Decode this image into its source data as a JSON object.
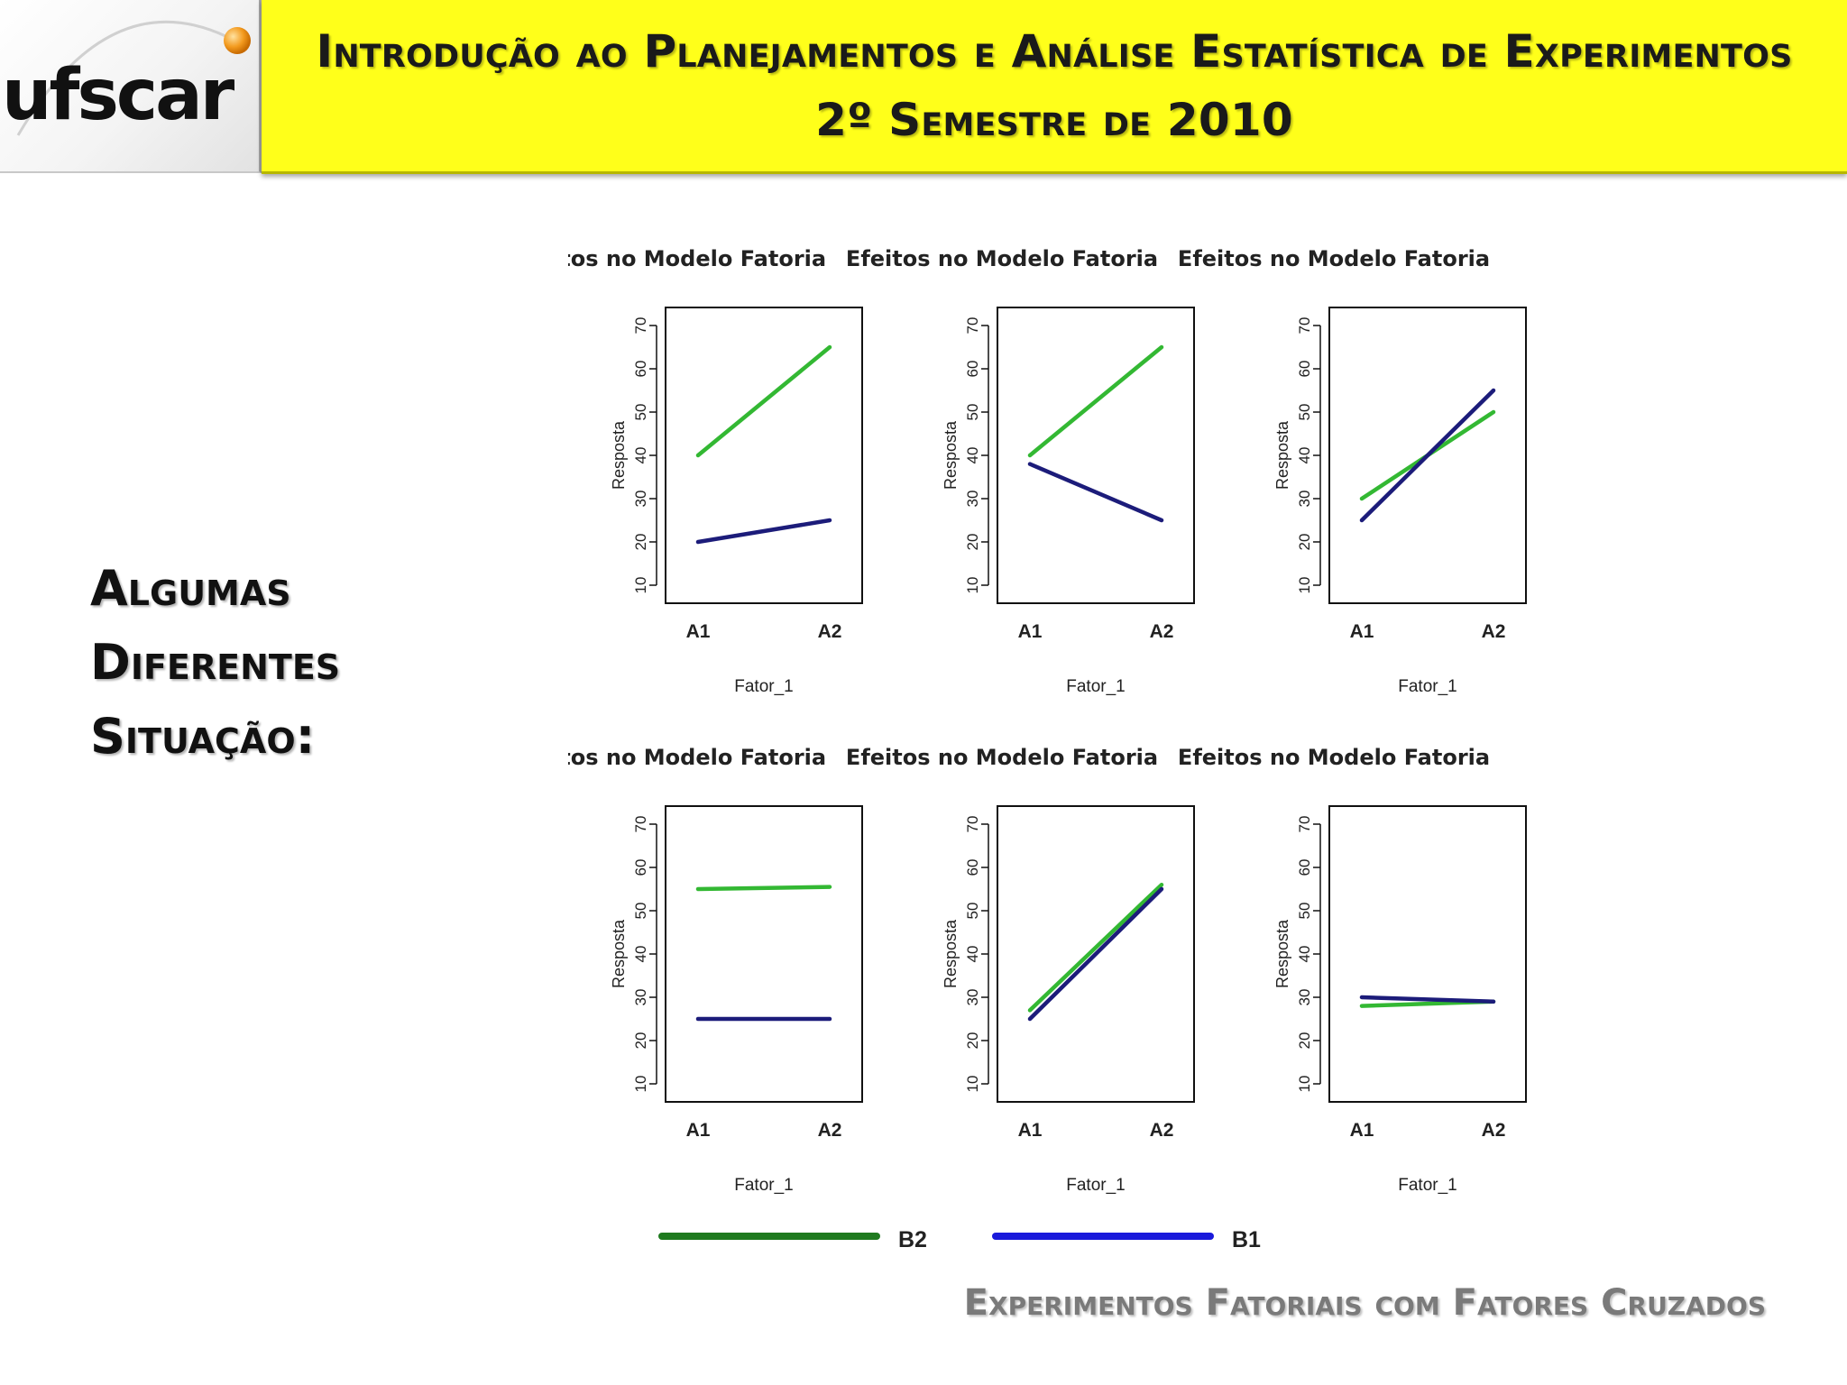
{
  "header": {
    "logo_text": "ufscar",
    "title_line1": "Introdução ao Planejamentos e Análise Estatística de Experimentos",
    "title_line2": "2º Semestre de 2010"
  },
  "side_heading": {
    "line1": "Algumas",
    "line2": "Diferentes",
    "line3": "Situação:"
  },
  "footer": {
    "text": "Experimentos Fatoriais com Fatores Cruzados"
  },
  "legend": [
    {
      "label": "B2",
      "color": "#1f7a1f"
    },
    {
      "label": "B1",
      "color": "#1a1adb"
    }
  ],
  "colors": {
    "B2": "#33b833",
    "B1": "#1c1c7a"
  },
  "chart_data": [
    {
      "type": "line",
      "title": "Efeitos no Modelo Fatoria",
      "xlabel": "Fator_1",
      "ylabel": "Resposta",
      "categories": [
        "A1",
        "A2"
      ],
      "ylim": [
        10,
        70
      ],
      "yticks": [
        10,
        20,
        30,
        40,
        50,
        60,
        70
      ],
      "series": [
        {
          "name": "B2",
          "values": [
            40,
            65
          ]
        },
        {
          "name": "B1",
          "values": [
            20,
            25
          ]
        }
      ]
    },
    {
      "type": "line",
      "title": "Efeitos no Modelo Fatoria",
      "xlabel": "Fator_1",
      "ylabel": "Resposta",
      "categories": [
        "A1",
        "A2"
      ],
      "ylim": [
        10,
        70
      ],
      "yticks": [
        10,
        20,
        30,
        40,
        50,
        60,
        70
      ],
      "series": [
        {
          "name": "B2",
          "values": [
            40,
            65
          ]
        },
        {
          "name": "B1",
          "values": [
            38,
            25
          ]
        }
      ]
    },
    {
      "type": "line",
      "title": "Efeitos no Modelo Fatoria",
      "xlabel": "Fator_1",
      "ylabel": "Resposta",
      "categories": [
        "A1",
        "A2"
      ],
      "ylim": [
        10,
        70
      ],
      "yticks": [
        10,
        20,
        30,
        40,
        50,
        60,
        70
      ],
      "series": [
        {
          "name": "B2",
          "values": [
            30,
            50
          ]
        },
        {
          "name": "B1",
          "values": [
            25,
            55
          ]
        }
      ]
    },
    {
      "type": "line",
      "title": "Efeitos no Modelo Fatoria",
      "xlabel": "Fator_1",
      "ylabel": "Resposta",
      "categories": [
        "A1",
        "A2"
      ],
      "ylim": [
        10,
        70
      ],
      "yticks": [
        10,
        20,
        30,
        40,
        50,
        60,
        70
      ],
      "series": [
        {
          "name": "B2",
          "values": [
            55,
            55.5
          ]
        },
        {
          "name": "B1",
          "values": [
            25,
            25
          ]
        }
      ]
    },
    {
      "type": "line",
      "title": "Efeitos no Modelo Fatoria",
      "xlabel": "Fator_1",
      "ylabel": "Resposta",
      "categories": [
        "A1",
        "A2"
      ],
      "ylim": [
        10,
        70
      ],
      "yticks": [
        10,
        20,
        30,
        40,
        50,
        60,
        70
      ],
      "series": [
        {
          "name": "B2",
          "values": [
            27,
            56
          ]
        },
        {
          "name": "B1",
          "values": [
            25,
            55
          ]
        }
      ]
    },
    {
      "type": "line",
      "title": "Efeitos no Modelo Fatoria",
      "xlabel": "Fator_1",
      "ylabel": "Resposta",
      "categories": [
        "A1",
        "A2"
      ],
      "ylim": [
        10,
        70
      ],
      "yticks": [
        10,
        20,
        30,
        40,
        50,
        60,
        70
      ],
      "series": [
        {
          "name": "B2",
          "values": [
            28,
            29
          ]
        },
        {
          "name": "B1",
          "values": [
            30,
            29
          ]
        }
      ]
    }
  ]
}
